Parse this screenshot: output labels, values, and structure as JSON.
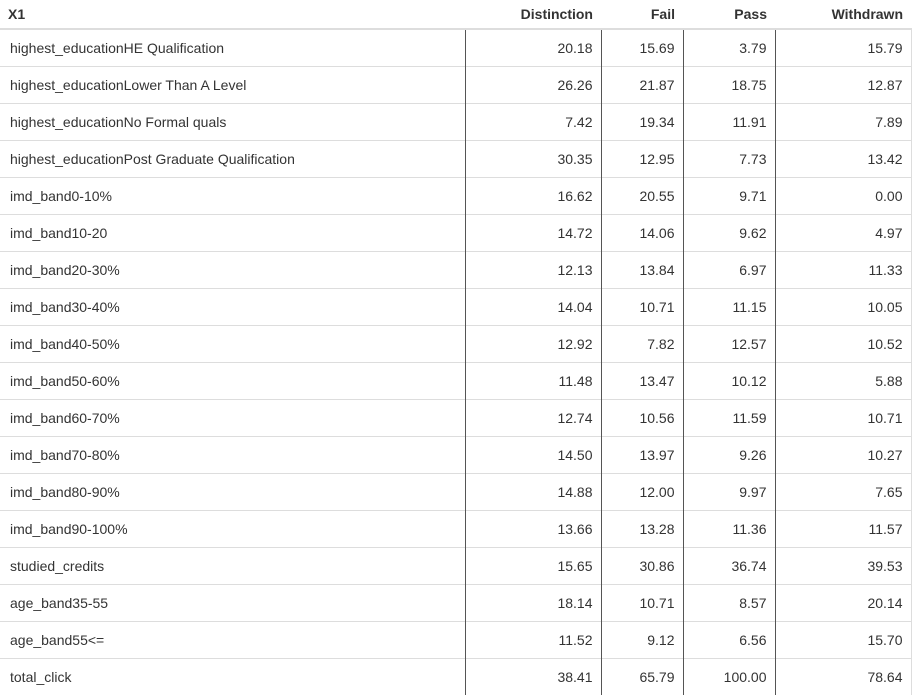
{
  "table": {
    "headers": {
      "variable": "X1",
      "distinction": "Distinction",
      "fail": "Fail",
      "pass": "Pass",
      "withdrawn": "Withdrawn"
    },
    "rows": [
      {
        "variable": "highest_educationHE Qualification",
        "distinction": "20.18",
        "fail": "15.69",
        "pass": "3.79",
        "withdrawn": "15.79"
      },
      {
        "variable": "highest_educationLower Than A Level",
        "distinction": "26.26",
        "fail": "21.87",
        "pass": "18.75",
        "withdrawn": "12.87"
      },
      {
        "variable": "highest_educationNo Formal quals",
        "distinction": "7.42",
        "fail": "19.34",
        "pass": "11.91",
        "withdrawn": "7.89"
      },
      {
        "variable": "highest_educationPost Graduate Qualification",
        "distinction": "30.35",
        "fail": "12.95",
        "pass": "7.73",
        "withdrawn": "13.42"
      },
      {
        "variable": "imd_band0-10%",
        "distinction": "16.62",
        "fail": "20.55",
        "pass": "9.71",
        "withdrawn": "0.00"
      },
      {
        "variable": "imd_band10-20",
        "distinction": "14.72",
        "fail": "14.06",
        "pass": "9.62",
        "withdrawn": "4.97"
      },
      {
        "variable": "imd_band20-30%",
        "distinction": "12.13",
        "fail": "13.84",
        "pass": "6.97",
        "withdrawn": "11.33"
      },
      {
        "variable": "imd_band30-40%",
        "distinction": "14.04",
        "fail": "10.71",
        "pass": "11.15",
        "withdrawn": "10.05"
      },
      {
        "variable": "imd_band40-50%",
        "distinction": "12.92",
        "fail": "7.82",
        "pass": "12.57",
        "withdrawn": "10.52"
      },
      {
        "variable": "imd_band50-60%",
        "distinction": "11.48",
        "fail": "13.47",
        "pass": "10.12",
        "withdrawn": "5.88"
      },
      {
        "variable": "imd_band60-70%",
        "distinction": "12.74",
        "fail": "10.56",
        "pass": "11.59",
        "withdrawn": "10.71"
      },
      {
        "variable": "imd_band70-80%",
        "distinction": "14.50",
        "fail": "13.97",
        "pass": "9.26",
        "withdrawn": "10.27"
      },
      {
        "variable": "imd_band80-90%",
        "distinction": "14.88",
        "fail": "12.00",
        "pass": "9.97",
        "withdrawn": "7.65"
      },
      {
        "variable": "imd_band90-100%",
        "distinction": "13.66",
        "fail": "13.28",
        "pass": "11.36",
        "withdrawn": "11.57"
      },
      {
        "variable": "studied_credits",
        "distinction": "15.65",
        "fail": "30.86",
        "pass": "36.74",
        "withdrawn": "39.53"
      },
      {
        "variable": "age_band35-55",
        "distinction": "18.14",
        "fail": "10.71",
        "pass": "8.57",
        "withdrawn": "20.14"
      },
      {
        "variable": "age_band55<=",
        "distinction": "11.52",
        "fail": "9.12",
        "pass": "6.56",
        "withdrawn": "15.70"
      },
      {
        "variable": "total_click",
        "distinction": "38.41",
        "fail": "65.79",
        "pass": "100.00",
        "withdrawn": "78.64"
      }
    ]
  }
}
